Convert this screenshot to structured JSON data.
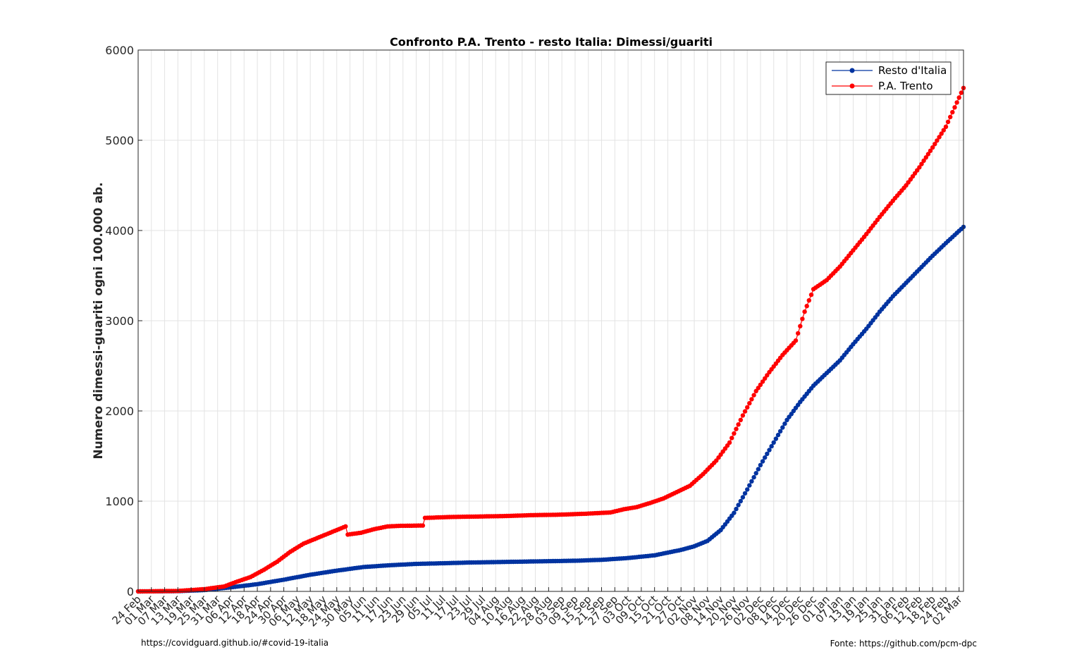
{
  "chart_data": {
    "type": "line",
    "title": "Confronto P.A. Trento - resto Italia: Dimessi/guariti",
    "xlabel": "",
    "ylabel": "Numero dimessi-guariti ogni 100.000 ab.",
    "ylim": [
      0,
      6000
    ],
    "yticks": [
      0,
      1000,
      2000,
      3000,
      4000,
      5000,
      6000
    ],
    "xlim": [
      "2020-02-24",
      "2021-03-04"
    ],
    "grid": true,
    "legend_position": "top-right",
    "x_tick_labels": [
      "24 Feb",
      "01 Mar",
      "07 Mar",
      "13 Mar",
      "19 Mar",
      "25 Mar",
      "31 Mar",
      "06 Apr",
      "12 Apr",
      "18 Apr",
      "24 Apr",
      "30 Apr",
      "06 May",
      "12 May",
      "18 May",
      "24 May",
      "30 May",
      "05 Jun",
      "11 Jun",
      "17 Jun",
      "23 Jun",
      "29 Jun",
      "05 Jul",
      "11 Jul",
      "17 Jul",
      "23 Jul",
      "29 Jul",
      "04 Aug",
      "10 Aug",
      "16 Aug",
      "22 Aug",
      "28 Aug",
      "03 Sep",
      "09 Sep",
      "15 Sep",
      "21 Sep",
      "27 Sep",
      "03 Oct",
      "09 Oct",
      "15 Oct",
      "21 Oct",
      "27 Oct",
      "02 Nov",
      "08 Nov",
      "14 Nov",
      "20 Nov",
      "26 Nov",
      "02 Dec",
      "08 Dec",
      "14 Dec",
      "20 Dec",
      "26 Dec",
      "01 Jan",
      "07 Jan",
      "13 Jan",
      "19 Jan",
      "25 Jan",
      "31 Jan",
      "06 Feb",
      "12 Feb",
      "18 Feb",
      "24 Feb",
      "02 Mar"
    ],
    "series": [
      {
        "name": "Resto d'Italia",
        "color": "#0033a0",
        "points": [
          [
            "2020-02-24",
            0
          ],
          [
            "2020-03-13",
            3
          ],
          [
            "2020-03-25",
            15
          ],
          [
            "2020-04-06",
            45
          ],
          [
            "2020-04-18",
            80
          ],
          [
            "2020-04-30",
            130
          ],
          [
            "2020-05-12",
            185
          ],
          [
            "2020-05-24",
            230
          ],
          [
            "2020-06-05",
            270
          ],
          [
            "2020-06-17",
            290
          ],
          [
            "2020-06-29",
            305
          ],
          [
            "2020-07-11",
            312
          ],
          [
            "2020-07-23",
            320
          ],
          [
            "2020-08-04",
            325
          ],
          [
            "2020-08-16",
            330
          ],
          [
            "2020-08-28",
            335
          ],
          [
            "2020-09-09",
            340
          ],
          [
            "2020-09-21",
            350
          ],
          [
            "2020-10-03",
            370
          ],
          [
            "2020-10-15",
            400
          ],
          [
            "2020-10-27",
            460
          ],
          [
            "2020-11-02",
            500
          ],
          [
            "2020-11-08",
            560
          ],
          [
            "2020-11-14",
            680
          ],
          [
            "2020-11-20",
            870
          ],
          [
            "2020-11-26",
            1130
          ],
          [
            "2020-12-02",
            1400
          ],
          [
            "2020-12-08",
            1650
          ],
          [
            "2020-12-14",
            1900
          ],
          [
            "2020-12-20",
            2100
          ],
          [
            "2020-12-26",
            2280
          ],
          [
            "2021-01-01",
            2420
          ],
          [
            "2021-01-07",
            2560
          ],
          [
            "2021-01-13",
            2740
          ],
          [
            "2021-01-19",
            2910
          ],
          [
            "2021-01-25",
            3100
          ],
          [
            "2021-01-31",
            3270
          ],
          [
            "2021-02-06",
            3420
          ],
          [
            "2021-02-12",
            3570
          ],
          [
            "2021-02-18",
            3720
          ],
          [
            "2021-02-24",
            3860
          ],
          [
            "2021-03-04",
            4040
          ]
        ]
      },
      {
        "name": "P.A. Trento",
        "color": "#ff0000",
        "points": [
          [
            "2020-02-24",
            0
          ],
          [
            "2020-03-13",
            5
          ],
          [
            "2020-03-25",
            25
          ],
          [
            "2020-04-03",
            55
          ],
          [
            "2020-04-09",
            110
          ],
          [
            "2020-04-15",
            160
          ],
          [
            "2020-04-21",
            240
          ],
          [
            "2020-04-27",
            330
          ],
          [
            "2020-05-03",
            440
          ],
          [
            "2020-05-09",
            530
          ],
          [
            "2020-05-15",
            590
          ],
          [
            "2020-05-21",
            650
          ],
          [
            "2020-05-27",
            710
          ],
          [
            "2020-05-28",
            720
          ],
          [
            "2020-05-29",
            630
          ],
          [
            "2020-06-04",
            650
          ],
          [
            "2020-06-10",
            690
          ],
          [
            "2020-06-16",
            720
          ],
          [
            "2020-06-22",
            727
          ],
          [
            "2020-07-02",
            730
          ],
          [
            "2020-07-03",
            815
          ],
          [
            "2020-07-15",
            825
          ],
          [
            "2020-07-27",
            830
          ],
          [
            "2020-08-08",
            835
          ],
          [
            "2020-08-20",
            845
          ],
          [
            "2020-09-01",
            850
          ],
          [
            "2020-09-13",
            860
          ],
          [
            "2020-09-25",
            875
          ],
          [
            "2020-10-01",
            910
          ],
          [
            "2020-10-07",
            935
          ],
          [
            "2020-10-13",
            980
          ],
          [
            "2020-10-19",
            1030
          ],
          [
            "2020-10-25",
            1100
          ],
          [
            "2020-10-31",
            1170
          ],
          [
            "2020-11-06",
            1300
          ],
          [
            "2020-11-12",
            1450
          ],
          [
            "2020-11-18",
            1650
          ],
          [
            "2020-11-24",
            1950
          ],
          [
            "2020-11-30",
            2220
          ],
          [
            "2020-12-06",
            2430
          ],
          [
            "2020-12-12",
            2620
          ],
          [
            "2020-12-18",
            2780
          ],
          [
            "2020-12-22",
            3100
          ],
          [
            "2020-12-26",
            3350
          ],
          [
            "2021-01-01",
            3450
          ],
          [
            "2021-01-07",
            3600
          ],
          [
            "2021-01-13",
            3780
          ],
          [
            "2021-01-19",
            3960
          ],
          [
            "2021-01-25",
            4150
          ],
          [
            "2021-01-31",
            4330
          ],
          [
            "2021-02-06",
            4500
          ],
          [
            "2021-02-12",
            4700
          ],
          [
            "2021-02-18",
            4920
          ],
          [
            "2021-02-24",
            5150
          ],
          [
            "2021-03-04",
            5580
          ]
        ]
      }
    ]
  },
  "footer": {
    "left": "https://covidguard.github.io/#covid-19-italia",
    "right": "Fonte: https://github.com/pcm-dpc"
  }
}
